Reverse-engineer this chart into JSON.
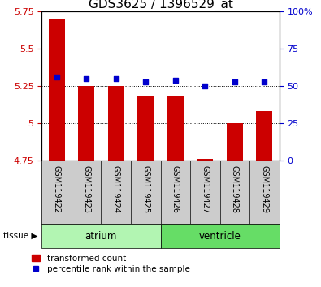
{
  "title": "GDS3625 / 1396529_at",
  "samples": [
    "GSM119422",
    "GSM119423",
    "GSM119424",
    "GSM119425",
    "GSM119426",
    "GSM119427",
    "GSM119428",
    "GSM119429"
  ],
  "transformed_counts": [
    5.7,
    5.25,
    5.25,
    5.18,
    5.18,
    4.76,
    5.0,
    5.08
  ],
  "percentile_ranks": [
    56,
    55,
    55,
    53,
    54,
    50,
    53,
    53
  ],
  "groups": [
    {
      "name": "atrium",
      "start": 0,
      "end": 4,
      "color": "#b2f5b2"
    },
    {
      "name": "ventricle",
      "start": 4,
      "end": 8,
      "color": "#66dd66"
    }
  ],
  "ylim_left": [
    4.75,
    5.75
  ],
  "ylim_right": [
    0,
    100
  ],
  "yticks_left": [
    4.75,
    5.0,
    5.25,
    5.5,
    5.75
  ],
  "yticks_right": [
    0,
    25,
    50,
    75,
    100
  ],
  "bar_color": "#cc0000",
  "marker_color": "#0000cc",
  "left_tick_color": "#cc0000",
  "right_tick_color": "#0000cc",
  "title_fontsize": 11,
  "tick_fontsize": 8,
  "label_fontsize": 8.5,
  "grid_color": "#000000",
  "plot_bg_color": "#ffffff",
  "sample_bg_color": "#cccccc"
}
